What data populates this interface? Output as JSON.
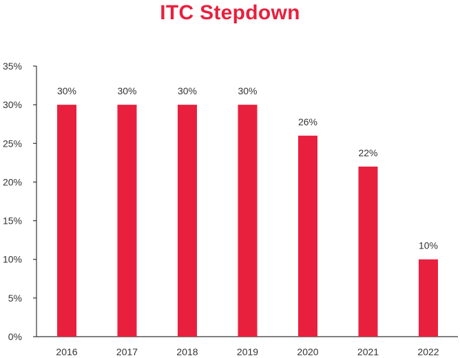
{
  "chart_data": {
    "type": "bar",
    "title": "ITC Stepdown",
    "xlabel": "",
    "ylabel": "",
    "categories": [
      "2016",
      "2017",
      "2018",
      "2019",
      "2020",
      "2021",
      "2022"
    ],
    "values": [
      30,
      30,
      30,
      30,
      26,
      22,
      10
    ],
    "data_labels": [
      "30%",
      "30%",
      "30%",
      "30%",
      "26%",
      "22%",
      "10%"
    ],
    "ylim": [
      0,
      35
    ],
    "yticks": [
      0,
      5,
      10,
      15,
      20,
      25,
      30,
      35
    ],
    "ytick_labels": [
      "0%",
      "5%",
      "10%",
      "15%",
      "20%",
      "25%",
      "30%",
      "35%"
    ],
    "grid": false,
    "legend": "none",
    "colors": {
      "bar": "#e8203d",
      "title": "#e8203d",
      "axis": "#333333",
      "text": "#333333"
    }
  }
}
